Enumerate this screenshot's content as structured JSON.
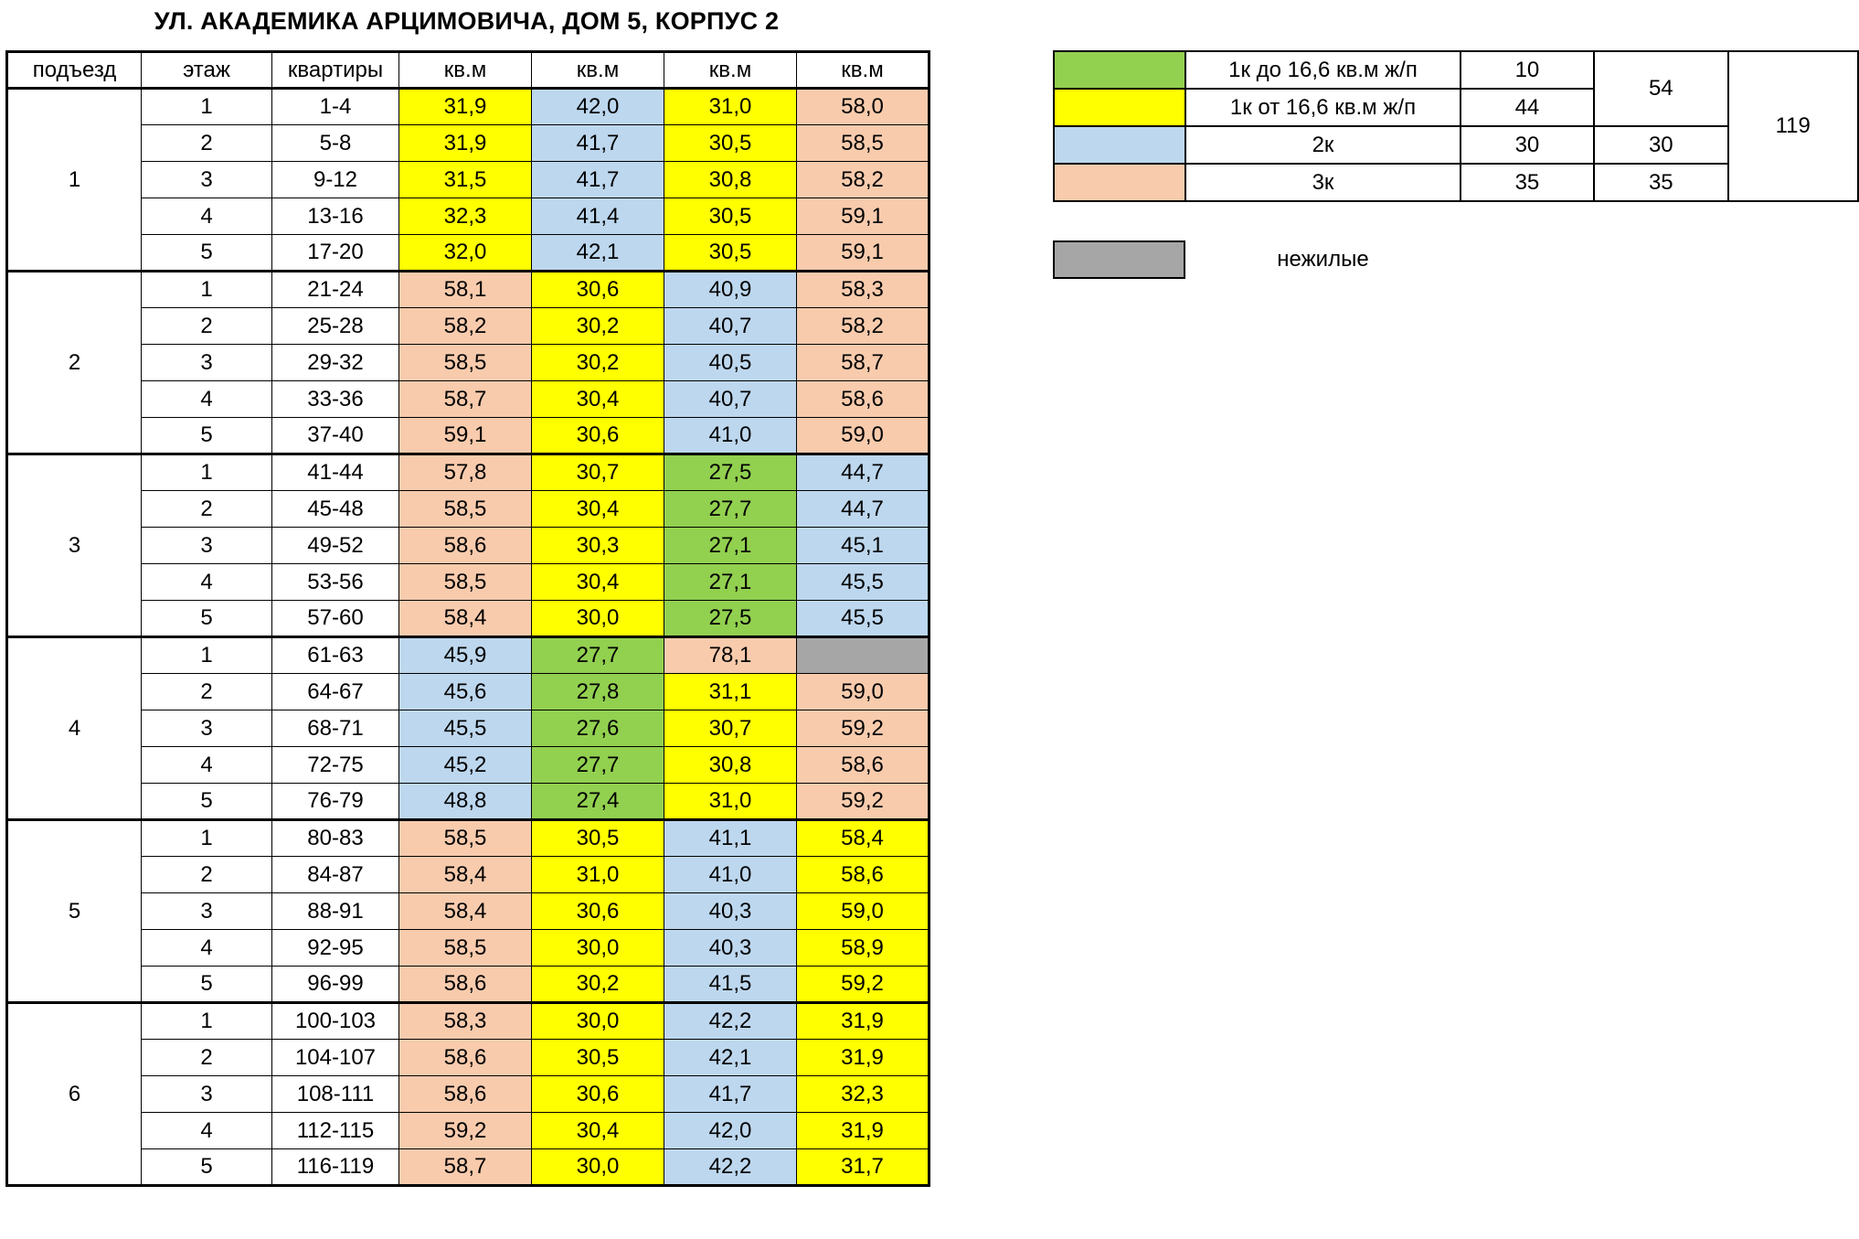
{
  "title": "УЛ. АКАДЕМИКА АРЦИМОВИЧА, ДОМ 5, КОРПУС 2",
  "colors": {
    "green": "#92D050",
    "yellow": "#FFFF00",
    "blue": "#BDD7EE",
    "peach": "#F8CBAD",
    "gray": "#A6A6A6"
  },
  "main_table": {
    "headers": [
      "подъезд",
      "этаж",
      "квартиры",
      "кв.м",
      "кв.м",
      "кв.м",
      "кв.м"
    ],
    "entrances": [
      {
        "number": "1",
        "rows": [
          {
            "floor": "1",
            "apartments": "1-4",
            "values": [
              {
                "v": "31,9",
                "c": "yellow"
              },
              {
                "v": "42,0",
                "c": "blue"
              },
              {
                "v": "31,0",
                "c": "yellow"
              },
              {
                "v": "58,0",
                "c": "peach"
              }
            ]
          },
          {
            "floor": "2",
            "apartments": "5-8",
            "values": [
              {
                "v": "31,9",
                "c": "yellow"
              },
              {
                "v": "41,7",
                "c": "blue"
              },
              {
                "v": "30,5",
                "c": "yellow"
              },
              {
                "v": "58,5",
                "c": "peach"
              }
            ]
          },
          {
            "floor": "3",
            "apartments": "9-12",
            "values": [
              {
                "v": "31,5",
                "c": "yellow"
              },
              {
                "v": "41,7",
                "c": "blue"
              },
              {
                "v": "30,8",
                "c": "yellow"
              },
              {
                "v": "58,2",
                "c": "peach"
              }
            ]
          },
          {
            "floor": "4",
            "apartments": "13-16",
            "values": [
              {
                "v": "32,3",
                "c": "yellow"
              },
              {
                "v": "41,4",
                "c": "blue"
              },
              {
                "v": "30,5",
                "c": "yellow"
              },
              {
                "v": "59,1",
                "c": "peach"
              }
            ]
          },
          {
            "floor": "5",
            "apartments": "17-20",
            "values": [
              {
                "v": "32,0",
                "c": "yellow"
              },
              {
                "v": "42,1",
                "c": "blue"
              },
              {
                "v": "30,5",
                "c": "yellow"
              },
              {
                "v": "59,1",
                "c": "peach"
              }
            ]
          }
        ]
      },
      {
        "number": "2",
        "rows": [
          {
            "floor": "1",
            "apartments": "21-24",
            "values": [
              {
                "v": "58,1",
                "c": "peach"
              },
              {
                "v": "30,6",
                "c": "yellow"
              },
              {
                "v": "40,9",
                "c": "blue"
              },
              {
                "v": "58,3",
                "c": "peach"
              }
            ]
          },
          {
            "floor": "2",
            "apartments": "25-28",
            "values": [
              {
                "v": "58,2",
                "c": "peach"
              },
              {
                "v": "30,2",
                "c": "yellow"
              },
              {
                "v": "40,7",
                "c": "blue"
              },
              {
                "v": "58,2",
                "c": "peach"
              }
            ]
          },
          {
            "floor": "3",
            "apartments": "29-32",
            "values": [
              {
                "v": "58,5",
                "c": "peach"
              },
              {
                "v": "30,2",
                "c": "yellow"
              },
              {
                "v": "40,5",
                "c": "blue"
              },
              {
                "v": "58,7",
                "c": "peach"
              }
            ]
          },
          {
            "floor": "4",
            "apartments": "33-36",
            "values": [
              {
                "v": "58,7",
                "c": "peach"
              },
              {
                "v": "30,4",
                "c": "yellow"
              },
              {
                "v": "40,7",
                "c": "blue"
              },
              {
                "v": "58,6",
                "c": "peach"
              }
            ]
          },
          {
            "floor": "5",
            "apartments": "37-40",
            "values": [
              {
                "v": "59,1",
                "c": "peach"
              },
              {
                "v": "30,6",
                "c": "yellow"
              },
              {
                "v": "41,0",
                "c": "blue"
              },
              {
                "v": "59,0",
                "c": "peach"
              }
            ]
          }
        ]
      },
      {
        "number": "3",
        "rows": [
          {
            "floor": "1",
            "apartments": "41-44",
            "values": [
              {
                "v": "57,8",
                "c": "peach"
              },
              {
                "v": "30,7",
                "c": "yellow"
              },
              {
                "v": "27,5",
                "c": "green"
              },
              {
                "v": "44,7",
                "c": "blue"
              }
            ]
          },
          {
            "floor": "2",
            "apartments": "45-48",
            "values": [
              {
                "v": "58,5",
                "c": "peach"
              },
              {
                "v": "30,4",
                "c": "yellow"
              },
              {
                "v": "27,7",
                "c": "green"
              },
              {
                "v": "44,7",
                "c": "blue"
              }
            ]
          },
          {
            "floor": "3",
            "apartments": "49-52",
            "values": [
              {
                "v": "58,6",
                "c": "peach"
              },
              {
                "v": "30,3",
                "c": "yellow"
              },
              {
                "v": "27,1",
                "c": "green"
              },
              {
                "v": "45,1",
                "c": "blue"
              }
            ]
          },
          {
            "floor": "4",
            "apartments": "53-56",
            "values": [
              {
                "v": "58,5",
                "c": "peach"
              },
              {
                "v": "30,4",
                "c": "yellow"
              },
              {
                "v": "27,1",
                "c": "green"
              },
              {
                "v": "45,5",
                "c": "blue"
              }
            ]
          },
          {
            "floor": "5",
            "apartments": "57-60",
            "values": [
              {
                "v": "58,4",
                "c": "peach"
              },
              {
                "v": "30,0",
                "c": "yellow"
              },
              {
                "v": "27,5",
                "c": "green"
              },
              {
                "v": "45,5",
                "c": "blue"
              }
            ]
          }
        ]
      },
      {
        "number": "4",
        "rows": [
          {
            "floor": "1",
            "apartments": "61-63",
            "values": [
              {
                "v": "45,9",
                "c": "blue"
              },
              {
                "v": "27,7",
                "c": "green"
              },
              {
                "v": "78,1",
                "c": "peach"
              },
              {
                "v": "",
                "c": "gray"
              }
            ]
          },
          {
            "floor": "2",
            "apartments": "64-67",
            "values": [
              {
                "v": "45,6",
                "c": "blue"
              },
              {
                "v": "27,8",
                "c": "green"
              },
              {
                "v": "31,1",
                "c": "yellow"
              },
              {
                "v": "59,0",
                "c": "peach"
              }
            ]
          },
          {
            "floor": "3",
            "apartments": "68-71",
            "values": [
              {
                "v": "45,5",
                "c": "blue"
              },
              {
                "v": "27,6",
                "c": "green"
              },
              {
                "v": "30,7",
                "c": "yellow"
              },
              {
                "v": "59,2",
                "c": "peach"
              }
            ]
          },
          {
            "floor": "4",
            "apartments": "72-75",
            "values": [
              {
                "v": "45,2",
                "c": "blue"
              },
              {
                "v": "27,7",
                "c": "green"
              },
              {
                "v": "30,8",
                "c": "yellow"
              },
              {
                "v": "58,6",
                "c": "peach"
              }
            ]
          },
          {
            "floor": "5",
            "apartments": "76-79",
            "values": [
              {
                "v": "48,8",
                "c": "blue"
              },
              {
                "v": "27,4",
                "c": "green"
              },
              {
                "v": "31,0",
                "c": "yellow"
              },
              {
                "v": "59,2",
                "c": "peach"
              }
            ]
          }
        ]
      },
      {
        "number": "5",
        "rows": [
          {
            "floor": "1",
            "apartments": "80-83",
            "values": [
              {
                "v": "58,5",
                "c": "peach"
              },
              {
                "v": "30,5",
                "c": "yellow"
              },
              {
                "v": "41,1",
                "c": "blue"
              },
              {
                "v": "58,4",
                "c": "yellow"
              }
            ]
          },
          {
            "floor": "2",
            "apartments": "84-87",
            "values": [
              {
                "v": "58,4",
                "c": "peach"
              },
              {
                "v": "31,0",
                "c": "yellow"
              },
              {
                "v": "41,0",
                "c": "blue"
              },
              {
                "v": "58,6",
                "c": "yellow"
              }
            ]
          },
          {
            "floor": "3",
            "apartments": "88-91",
            "values": [
              {
                "v": "58,4",
                "c": "peach"
              },
              {
                "v": "30,6",
                "c": "yellow"
              },
              {
                "v": "40,3",
                "c": "blue"
              },
              {
                "v": "59,0",
                "c": "yellow"
              }
            ]
          },
          {
            "floor": "4",
            "apartments": "92-95",
            "values": [
              {
                "v": "58,5",
                "c": "peach"
              },
              {
                "v": "30,0",
                "c": "yellow"
              },
              {
                "v": "40,3",
                "c": "blue"
              },
              {
                "v": "58,9",
                "c": "yellow"
              }
            ]
          },
          {
            "floor": "5",
            "apartments": "96-99",
            "values": [
              {
                "v": "58,6",
                "c": "peach"
              },
              {
                "v": "30,2",
                "c": "yellow"
              },
              {
                "v": "41,5",
                "c": "blue"
              },
              {
                "v": "59,2",
                "c": "yellow"
              }
            ]
          }
        ]
      },
      {
        "number": "6",
        "rows": [
          {
            "floor": "1",
            "apartments": "100-103",
            "values": [
              {
                "v": "58,3",
                "c": "peach"
              },
              {
                "v": "30,0",
                "c": "yellow"
              },
              {
                "v": "42,2",
                "c": "blue"
              },
              {
                "v": "31,9",
                "c": "yellow"
              }
            ]
          },
          {
            "floor": "2",
            "apartments": "104-107",
            "values": [
              {
                "v": "58,6",
                "c": "peach"
              },
              {
                "v": "30,5",
                "c": "yellow"
              },
              {
                "v": "42,1",
                "c": "blue"
              },
              {
                "v": "31,9",
                "c": "yellow"
              }
            ]
          },
          {
            "floor": "3",
            "apartments": "108-111",
            "values": [
              {
                "v": "58,6",
                "c": "peach"
              },
              {
                "v": "30,6",
                "c": "yellow"
              },
              {
                "v": "41,7",
                "c": "blue"
              },
              {
                "v": "32,3",
                "c": "yellow"
              }
            ]
          },
          {
            "floor": "4",
            "apartments": "112-115",
            "values": [
              {
                "v": "59,2",
                "c": "peach"
              },
              {
                "v": "30,4",
                "c": "yellow"
              },
              {
                "v": "42,0",
                "c": "blue"
              },
              {
                "v": "31,9",
                "c": "yellow"
              }
            ]
          },
          {
            "floor": "5",
            "apartments": "116-119",
            "values": [
              {
                "v": "58,7",
                "c": "peach"
              },
              {
                "v": "30,0",
                "c": "yellow"
              },
              {
                "v": "42,2",
                "c": "blue"
              },
              {
                "v": "31,7",
                "c": "yellow"
              }
            ]
          }
        ]
      }
    ]
  },
  "legend": {
    "rows": [
      {
        "color": "green",
        "label": "1к до 16,6 кв.м ж/п",
        "count": "10"
      },
      {
        "color": "yellow",
        "label": "1к от 16,6 кв.м ж/п",
        "count": "44"
      },
      {
        "color": "blue",
        "label": "2к",
        "count": "30",
        "subtotal": "30"
      },
      {
        "color": "peach",
        "label": "3к",
        "count": "35",
        "subtotal": "35"
      }
    ],
    "group_subtotal": "54",
    "total": "119",
    "nonresidential": {
      "color": "gray",
      "label": "нежилые"
    }
  }
}
